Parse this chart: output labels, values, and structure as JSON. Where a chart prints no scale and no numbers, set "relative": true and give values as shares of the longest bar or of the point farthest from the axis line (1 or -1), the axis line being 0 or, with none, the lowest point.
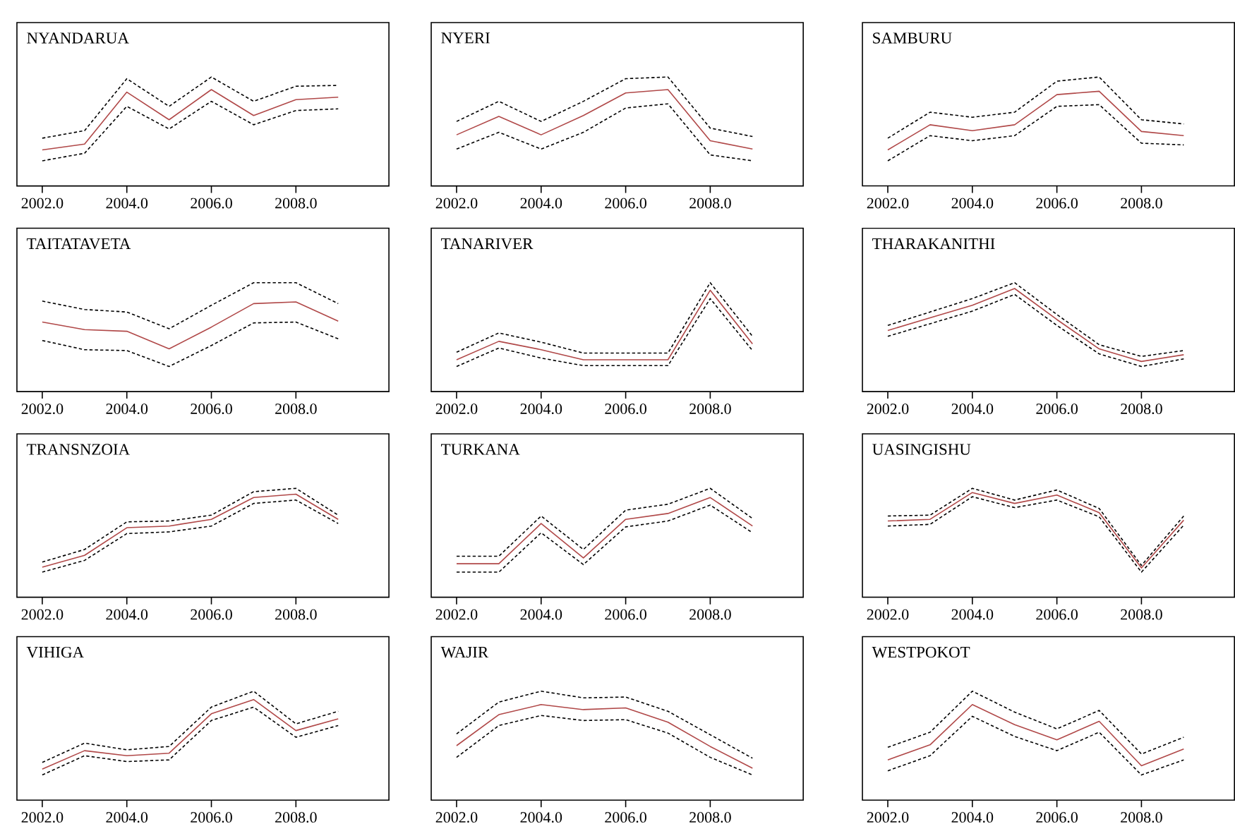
{
  "chart_data": [
    {
      "type": "line",
      "title": "NYANDARUA",
      "relative": true,
      "x": [
        2002,
        2003,
        2004,
        2005,
        2006,
        2007,
        2008,
        2009
      ],
      "xlim": [
        2001.4,
        2010.2
      ],
      "xticks": [
        {
          "value": 2002,
          "label": "2002.0"
        },
        {
          "value": 2004,
          "label": "2004.0"
        },
        {
          "value": 2006,
          "label": "2006.0"
        },
        {
          "value": 2008,
          "label": "2008.0"
        }
      ],
      "series": [
        {
          "color": "#b04848",
          "line_style": "solid",
          "values": [
            0.13,
            0.2,
            0.82,
            0.49,
            0.85,
            0.54,
            0.73,
            0.76
          ]
        },
        {
          "color": "#000000",
          "line_style": "dashed",
          "values": [
            0.27,
            0.36,
            0.98,
            0.65,
            1.0,
            0.71,
            0.89,
            0.9
          ]
        },
        {
          "color": "#000000",
          "line_style": "dashed",
          "values": [
            0,
            0.09,
            0.65,
            0.38,
            0.71,
            0.43,
            0.6,
            0.62
          ]
        }
      ]
    },
    {
      "type": "line",
      "title": "NYERI",
      "relative": true,
      "x": [
        2002,
        2003,
        2004,
        2005,
        2006,
        2007,
        2008,
        2009
      ],
      "xlim": [
        2001.4,
        2010.2
      ],
      "xticks": [
        {
          "value": 2002,
          "label": "2002.0"
        },
        {
          "value": 2004,
          "label": "2004.0"
        },
        {
          "value": 2006,
          "label": "2006.0"
        },
        {
          "value": 2008,
          "label": "2008.0"
        }
      ],
      "series": [
        {
          "color": "#b04848",
          "line_style": "solid",
          "values": [
            0.31,
            0.53,
            0.31,
            0.54,
            0.81,
            0.85,
            0.24,
            0.14
          ]
        },
        {
          "color": "#000000",
          "line_style": "dashed",
          "values": [
            0.47,
            0.71,
            0.47,
            0.71,
            0.98,
            1.0,
            0.39,
            0.29
          ]
        },
        {
          "color": "#000000",
          "line_style": "dashed",
          "values": [
            0.14,
            0.34,
            0.14,
            0.34,
            0.63,
            0.68,
            0.07,
            0
          ]
        }
      ]
    },
    {
      "type": "line",
      "title": "SAMBURU",
      "relative": true,
      "x": [
        2002,
        2003,
        2004,
        2005,
        2006,
        2007,
        2008,
        2009
      ],
      "xlim": [
        2001.4,
        2010.2
      ],
      "xticks": [
        {
          "value": 2002,
          "label": "2002.0"
        },
        {
          "value": 2004,
          "label": "2004.0"
        },
        {
          "value": 2006,
          "label": "2006.0"
        },
        {
          "value": 2008,
          "label": "2008.0"
        }
      ],
      "series": [
        {
          "color": "#b04848",
          "line_style": "solid",
          "values": [
            0.13,
            0.43,
            0.36,
            0.43,
            0.79,
            0.83,
            0.35,
            0.3
          ]
        },
        {
          "color": "#000000",
          "line_style": "dashed",
          "values": [
            0.27,
            0.58,
            0.52,
            0.58,
            0.95,
            1.0,
            0.49,
            0.44
          ]
        },
        {
          "color": "#000000",
          "line_style": "dashed",
          "values": [
            0,
            0.3,
            0.24,
            0.3,
            0.65,
            0.67,
            0.21,
            0.19
          ]
        }
      ]
    },
    {
      "type": "line",
      "title": "TAITATAVETA",
      "relative": true,
      "x": [
        2002,
        2003,
        2004,
        2005,
        2006,
        2007,
        2008,
        2009
      ],
      "xlim": [
        2001.4,
        2010.2
      ],
      "xticks": [
        {
          "value": 2002,
          "label": "2002.0"
        },
        {
          "value": 2004,
          "label": "2004.0"
        },
        {
          "value": 2006,
          "label": "2006.0"
        },
        {
          "value": 2008,
          "label": "2008.0"
        }
      ],
      "series": [
        {
          "color": "#b04848",
          "line_style": "solid",
          "values": [
            0.53,
            0.44,
            0.42,
            0.21,
            0.47,
            0.75,
            0.77,
            0.54
          ]
        },
        {
          "color": "#000000",
          "line_style": "dashed",
          "values": [
            0.78,
            0.68,
            0.65,
            0.45,
            0.73,
            1.0,
            1.0,
            0.75
          ]
        },
        {
          "color": "#000000",
          "line_style": "dashed",
          "values": [
            0.31,
            0.2,
            0.19,
            0,
            0.25,
            0.52,
            0.53,
            0.33
          ]
        }
      ]
    },
    {
      "type": "line",
      "title": "TANARIVER",
      "relative": true,
      "x": [
        2002,
        2003,
        2004,
        2005,
        2006,
        2007,
        2008,
        2009
      ],
      "xlim": [
        2001.4,
        2010.2
      ],
      "xticks": [
        {
          "value": 2002,
          "label": "2002.0"
        },
        {
          "value": 2004,
          "label": "2004.0"
        },
        {
          "value": 2006,
          "label": "2006.0"
        },
        {
          "value": 2008,
          "label": "2008.0"
        }
      ],
      "series": [
        {
          "color": "#b04848",
          "line_style": "solid",
          "values": [
            0.08,
            0.3,
            0.2,
            0.08,
            0.08,
            0.08,
            0.91,
            0.27
          ]
        },
        {
          "color": "#000000",
          "line_style": "dashed",
          "values": [
            0.17,
            0.4,
            0.29,
            0.16,
            0.16,
            0.16,
            1.0,
            0.36
          ]
        },
        {
          "color": "#000000",
          "line_style": "dashed",
          "values": [
            0,
            0.22,
            0.1,
            0.01,
            0.01,
            0.01,
            0.81,
            0.19
          ]
        }
      ]
    },
    {
      "type": "line",
      "title": "THARAKANITHI",
      "relative": true,
      "x": [
        2002,
        2003,
        2004,
        2005,
        2006,
        2007,
        2008,
        2009
      ],
      "xlim": [
        2001.4,
        2010.2
      ],
      "xticks": [
        {
          "value": 2002,
          "label": "2002.0"
        },
        {
          "value": 2004,
          "label": "2004.0"
        },
        {
          "value": 2006,
          "label": "2006.0"
        },
        {
          "value": 2008,
          "label": "2008.0"
        }
      ],
      "series": [
        {
          "color": "#b04848",
          "line_style": "solid",
          "values": [
            0.43,
            0.58,
            0.73,
            0.93,
            0.56,
            0.21,
            0.06,
            0.14
          ]
        },
        {
          "color": "#000000",
          "line_style": "dashed",
          "values": [
            0.49,
            0.65,
            0.81,
            1.0,
            0.62,
            0.26,
            0.12,
            0.19
          ]
        },
        {
          "color": "#000000",
          "line_style": "dashed",
          "values": [
            0.36,
            0.51,
            0.66,
            0.86,
            0.49,
            0.15,
            0,
            0.09
          ]
        }
      ]
    },
    {
      "type": "line",
      "title": "TRANSNZOIA",
      "relative": true,
      "x": [
        2002,
        2003,
        2004,
        2005,
        2006,
        2007,
        2008,
        2009
      ],
      "xlim": [
        2001.4,
        2010.2
      ],
      "xticks": [
        {
          "value": 2002,
          "label": "2002.0"
        },
        {
          "value": 2004,
          "label": "2004.0"
        },
        {
          "value": 2006,
          "label": "2006.0"
        },
        {
          "value": 2008,
          "label": "2008.0"
        }
      ],
      "series": [
        {
          "color": "#b04848",
          "line_style": "solid",
          "values": [
            0.06,
            0.2,
            0.53,
            0.55,
            0.63,
            0.89,
            0.93,
            0.63
          ]
        },
        {
          "color": "#000000",
          "line_style": "dashed",
          "values": [
            0.12,
            0.27,
            0.6,
            0.61,
            0.68,
            0.96,
            1.0,
            0.68
          ]
        },
        {
          "color": "#000000",
          "line_style": "dashed",
          "values": [
            0,
            0.14,
            0.46,
            0.48,
            0.55,
            0.82,
            0.86,
            0.58
          ]
        }
      ]
    },
    {
      "type": "line",
      "title": "TURKANA",
      "relative": true,
      "x": [
        2002,
        2003,
        2004,
        2005,
        2006,
        2007,
        2008,
        2009
      ],
      "xlim": [
        2001.4,
        2010.2
      ],
      "xticks": [
        {
          "value": 2002,
          "label": "2002.0"
        },
        {
          "value": 2004,
          "label": "2004.0"
        },
        {
          "value": 2006,
          "label": "2006.0"
        },
        {
          "value": 2008,
          "label": "2008.0"
        }
      ],
      "series": [
        {
          "color": "#b04848",
          "line_style": "solid",
          "values": [
            0.1,
            0.1,
            0.58,
            0.17,
            0.63,
            0.7,
            0.89,
            0.55
          ]
        },
        {
          "color": "#000000",
          "line_style": "dashed",
          "values": [
            0.19,
            0.19,
            0.67,
            0.27,
            0.74,
            0.81,
            1.0,
            0.64
          ]
        },
        {
          "color": "#000000",
          "line_style": "dashed",
          "values": [
            0,
            0,
            0.47,
            0.09,
            0.54,
            0.61,
            0.8,
            0.47
          ]
        }
      ]
    },
    {
      "type": "line",
      "title": "UASINGISHU",
      "relative": true,
      "x": [
        2002,
        2003,
        2004,
        2005,
        2006,
        2007,
        2008,
        2009
      ],
      "xlim": [
        2001.4,
        2010.2
      ],
      "xticks": [
        {
          "value": 2002,
          "label": "2002.0"
        },
        {
          "value": 2004,
          "label": "2004.0"
        },
        {
          "value": 2006,
          "label": "2006.0"
        },
        {
          "value": 2008,
          "label": "2008.0"
        }
      ],
      "series": [
        {
          "color": "#b04848",
          "line_style": "solid",
          "values": [
            0.61,
            0.63,
            0.95,
            0.82,
            0.92,
            0.71,
            0.05,
            0.62
          ]
        },
        {
          "color": "#000000",
          "line_style": "dashed",
          "values": [
            0.67,
            0.68,
            1.0,
            0.86,
            0.98,
            0.76,
            0.08,
            0.67
          ]
        },
        {
          "color": "#000000",
          "line_style": "dashed",
          "values": [
            0.55,
            0.57,
            0.9,
            0.77,
            0.86,
            0.66,
            0,
            0.56
          ]
        }
      ]
    },
    {
      "type": "line",
      "title": "VIHIGA",
      "relative": true,
      "x": [
        2002,
        2003,
        2004,
        2005,
        2006,
        2007,
        2008,
        2009
      ],
      "xlim": [
        2001.4,
        2010.2
      ],
      "xticks": [
        {
          "value": 2002,
          "label": "2002.0"
        },
        {
          "value": 2004,
          "label": "2004.0"
        },
        {
          "value": 2006,
          "label": "2006.0"
        },
        {
          "value": 2008,
          "label": "2008.0"
        }
      ],
      "series": [
        {
          "color": "#b04848",
          "line_style": "solid",
          "values": [
            0.07,
            0.29,
            0.23,
            0.26,
            0.73,
            0.9,
            0.53,
            0.67
          ]
        },
        {
          "color": "#000000",
          "line_style": "dashed",
          "values": [
            0.15,
            0.38,
            0.3,
            0.34,
            0.81,
            1.0,
            0.61,
            0.76
          ]
        },
        {
          "color": "#000000",
          "line_style": "dashed",
          "values": [
            0,
            0.23,
            0.16,
            0.18,
            0.65,
            0.81,
            0.45,
            0.59
          ]
        }
      ]
    },
    {
      "type": "line",
      "title": "WAJIR",
      "relative": true,
      "x": [
        2002,
        2003,
        2004,
        2005,
        2006,
        2007,
        2008,
        2009
      ],
      "xlim": [
        2001.4,
        2010.2
      ],
      "xticks": [
        {
          "value": 2002,
          "label": "2002.0"
        },
        {
          "value": 2004,
          "label": "2004.0"
        },
        {
          "value": 2006,
          "label": "2006.0"
        },
        {
          "value": 2008,
          "label": "2008.0"
        }
      ],
      "series": [
        {
          "color": "#b04848",
          "line_style": "solid",
          "values": [
            0.35,
            0.72,
            0.84,
            0.78,
            0.8,
            0.63,
            0.34,
            0.08
          ]
        },
        {
          "color": "#000000",
          "line_style": "dashed",
          "values": [
            0.49,
            0.87,
            1.0,
            0.92,
            0.93,
            0.76,
            0.48,
            0.2
          ]
        },
        {
          "color": "#000000",
          "line_style": "dashed",
          "values": [
            0.21,
            0.59,
            0.71,
            0.65,
            0.66,
            0.5,
            0.21,
            0
          ]
        }
      ]
    },
    {
      "type": "line",
      "title": "WESTPOKOT",
      "relative": true,
      "x": [
        2002,
        2003,
        2004,
        2005,
        2006,
        2007,
        2008,
        2009
      ],
      "xlim": [
        2001.4,
        2010.2
      ],
      "xticks": [
        {
          "value": 2002,
          "label": "2002.0"
        },
        {
          "value": 2004,
          "label": "2004.0"
        },
        {
          "value": 2006,
          "label": "2006.0"
        },
        {
          "value": 2008,
          "label": "2008.0"
        }
      ],
      "series": [
        {
          "color": "#b04848",
          "line_style": "solid",
          "values": [
            0.18,
            0.36,
            0.84,
            0.6,
            0.42,
            0.64,
            0.11,
            0.31
          ]
        },
        {
          "color": "#000000",
          "line_style": "dashed",
          "values": [
            0.33,
            0.51,
            1.0,
            0.75,
            0.55,
            0.77,
            0.25,
            0.45
          ]
        },
        {
          "color": "#000000",
          "line_style": "dashed",
          "values": [
            0.05,
            0.23,
            0.7,
            0.46,
            0.29,
            0.51,
            0,
            0.18
          ]
        }
      ]
    }
  ]
}
